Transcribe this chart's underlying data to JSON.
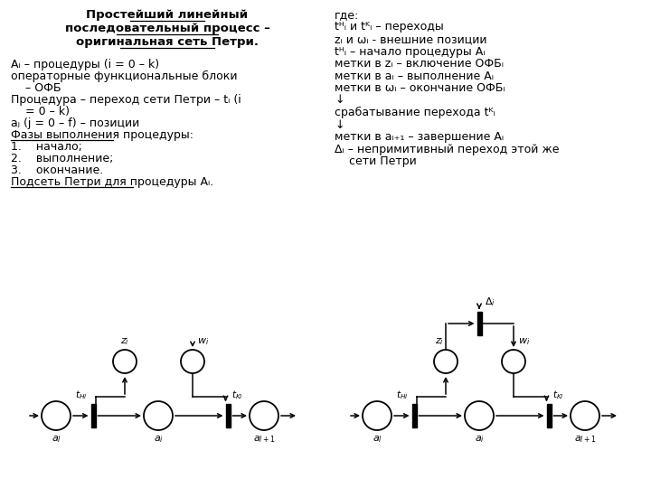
{
  "bg_color": "#ffffff",
  "text_color": "#000000",
  "title_lines": [
    "Простейший линейный",
    "последовательный процесс –",
    "оригинальная сеть Петри."
  ],
  "left_body": [
    [
      "Aᵢ – процедуры (i = 0 – k)",
      false
    ],
    [
      "операторные функциональные блоки",
      false
    ],
    [
      "    – ОФБ",
      false
    ],
    [
      "Процедура – переход сети Петри – tᵢ (i",
      false
    ],
    [
      "    = 0 – k)",
      false
    ],
    [
      "aⱼ (j = 0 – f) – позиции",
      false
    ],
    [
      "Фазы выполнения процедуры:",
      true
    ],
    [
      "1.    начало;",
      false
    ],
    [
      "2.    выполнение;",
      false
    ],
    [
      "3.    окончание.",
      false
    ],
    [
      "Подсеть Петри для процедуры Aᵢ.",
      true
    ]
  ],
  "right_body": [
    "где:",
    "tᴴᵢ и tᴷᵢ – переходы",
    "zᵢ и ωᵢ - внешние позиции",
    "tᴴᵢ – начало процедуры Aᵢ",
    "метки в zᵢ – включение ОФБᵢ",
    "метки в aᵢ – выполнение Aᵢ",
    "метки в ωᵢ – окончание ОФБᵢ",
    "↓",
    "срабатывание перехода tᴷᵢ",
    "↓",
    "метки в aᵢ₊₁ – завершение Aᵢ",
    "Δᵢ – непримитивный переход этой же",
    "    сети Петри"
  ]
}
